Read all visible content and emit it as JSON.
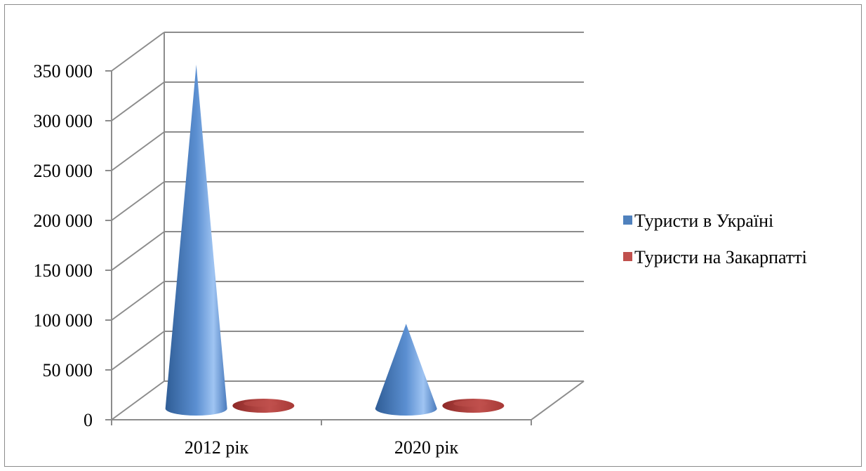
{
  "chart_data": {
    "type": "bar",
    "style": "3d-cone",
    "categories": [
      "2012 рік",
      "2020 рік"
    ],
    "series": [
      {
        "name": "Туристи в Україні",
        "values": [
          345000,
          85000
        ],
        "color": "#4f81bd"
      },
      {
        "name": "Туристи на Закарпатті",
        "values": [
          9000,
          2000
        ],
        "color": "#c0504d"
      }
    ],
    "ylim": [
      0,
      350000
    ],
    "yticks": [
      "0",
      "50 000",
      "100 000",
      "150 000",
      "200 000",
      "250 000",
      "300 000",
      "350 000"
    ],
    "grid": true,
    "legend": "right"
  }
}
